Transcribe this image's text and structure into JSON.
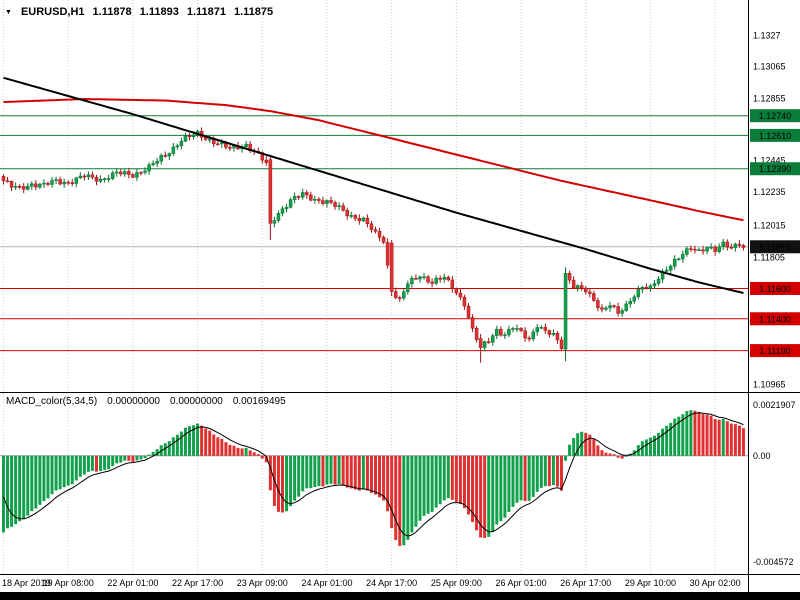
{
  "header": {
    "dropdown_icon": "▼",
    "symbol": "EURUSD,H1",
    "open": "1.11878",
    "high": "1.11893",
    "low": "1.11871",
    "close": "1.11875"
  },
  "macd_header": {
    "label": "MACD_color(5,34,5)",
    "value1": "0.00000000",
    "value2": "0.00000000",
    "value3": "0.00169495"
  },
  "chart_data": [
    {
      "type": "candlestick",
      "title": "EURUSD H1",
      "bars": 184,
      "y_axis": {
        "min": 1.1093,
        "max": 1.13345,
        "ticks": [
          "1.1327",
          "1.13065",
          "1.12855",
          "1.12445",
          "1.12235",
          "1.12015",
          "1.11805",
          "1.10965"
        ]
      },
      "x_ticks": [
        {
          "bar": 0,
          "label": "18 Apr 2019"
        },
        {
          "bar": 16,
          "label": "19 Apr 08:00"
        },
        {
          "bar": 32,
          "label": "22 Apr 01:00"
        },
        {
          "bar": 48,
          "label": "22 Apr 17:00"
        },
        {
          "bar": 64,
          "label": "23 Apr 09:00"
        },
        {
          "bar": 80,
          "label": "24 Apr 01:00"
        },
        {
          "bar": 96,
          "label": "24 Apr 17:00"
        },
        {
          "bar": 112,
          "label": "25 Apr 09:00"
        },
        {
          "bar": 128,
          "label": "26 Apr 01:00"
        },
        {
          "bar": 144,
          "label": "26 Apr 17:00"
        },
        {
          "bar": 160,
          "label": "29 Apr 10:00"
        },
        {
          "bar": 176,
          "label": "30 Apr 02:00"
        }
      ],
      "close_waypoints": [
        [
          0,
          1.1231
        ],
        [
          2,
          1.1227
        ],
        [
          4,
          1.1226
        ],
        [
          7,
          1.1229
        ],
        [
          10,
          1.1228
        ],
        [
          13,
          1.1231
        ],
        [
          16,
          1.123
        ],
        [
          20,
          1.1234
        ],
        [
          24,
          1.1232
        ],
        [
          28,
          1.1236
        ],
        [
          32,
          1.1235
        ],
        [
          36,
          1.124
        ],
        [
          40,
          1.1248
        ],
        [
          44,
          1.1258
        ],
        [
          48,
          1.1262
        ],
        [
          52,
          1.1257
        ],
        [
          56,
          1.1252
        ],
        [
          60,
          1.1255
        ],
        [
          63,
          1.1248
        ],
        [
          65,
          1.1242
        ],
        [
          66,
          1.1203
        ],
        [
          68,
          1.121
        ],
        [
          71,
          1.1218
        ],
        [
          74,
          1.1222
        ],
        [
          77,
          1.1219
        ],
        [
          80,
          1.1217
        ],
        [
          83,
          1.1213
        ],
        [
          86,
          1.1208
        ],
        [
          89,
          1.1205
        ],
        [
          92,
          1.1196
        ],
        [
          94,
          1.1192
        ],
        [
          96,
          1.1158
        ],
        [
          98,
          1.1152
        ],
        [
          100,
          1.1163
        ],
        [
          103,
          1.1169
        ],
        [
          106,
          1.1164
        ],
        [
          109,
          1.1167
        ],
        [
          112,
          1.1158
        ],
        [
          114,
          1.115
        ],
        [
          116,
          1.1132
        ],
        [
          118,
          1.1121
        ],
        [
          120,
          1.1126
        ],
        [
          122,
          1.1133
        ],
        [
          124,
          1.1129
        ],
        [
          126,
          1.1134
        ],
        [
          128,
          1.1131
        ],
        [
          130,
          1.1127
        ],
        [
          132,
          1.1136
        ],
        [
          134,
          1.1131
        ],
        [
          136,
          1.1129
        ],
        [
          138,
          1.1122
        ],
        [
          139,
          1.117
        ],
        [
          141,
          1.1162
        ],
        [
          144,
          1.1158
        ],
        [
          146,
          1.1152
        ],
        [
          148,
          1.1146
        ],
        [
          150,
          1.115
        ],
        [
          152,
          1.1143
        ],
        [
          154,
          1.1148
        ],
        [
          156,
          1.1156
        ],
        [
          158,
          1.1162
        ],
        [
          160,
          1.116
        ],
        [
          162,
          1.1166
        ],
        [
          164,
          1.1173
        ],
        [
          166,
          1.1179
        ],
        [
          168,
          1.1183
        ],
        [
          170,
          1.1186
        ],
        [
          172,
          1.1184
        ],
        [
          174,
          1.1188
        ],
        [
          176,
          1.1186
        ],
        [
          178,
          1.1189
        ],
        [
          180,
          1.1186
        ],
        [
          182,
          1.119
        ],
        [
          183,
          1.11875
        ]
      ],
      "candle_overrides": {
        "66": [
          1.1245,
          1.1247,
          1.1192,
          1.1203
        ],
        "96": [
          1.119,
          1.1192,
          1.1155,
          1.1158
        ],
        "118": [
          1.1127,
          1.113,
          1.1111,
          1.1121
        ],
        "139": [
          1.112,
          1.1174,
          1.1112,
          1.117
        ]
      },
      "levels": {
        "resistance": [
          {
            "price": 1.1274,
            "label": "1.12740"
          },
          {
            "price": 1.1261,
            "label": "1.12610"
          },
          {
            "price": 1.1239,
            "label": "1.12390"
          }
        ],
        "support": [
          {
            "price": 1.116,
            "label": "1.11600"
          },
          {
            "price": 1.114,
            "label": "1.11400"
          },
          {
            "price": 1.1119,
            "label": "1.11190"
          }
        ]
      },
      "current_price": {
        "value": 1.11875,
        "label": "1.11875"
      },
      "moving_averages": [
        {
          "name": "ma-red",
          "color": "#d40000",
          "points": [
            [
              0,
              1.1283
            ],
            [
              20,
              1.1285
            ],
            [
              40,
              1.1284
            ],
            [
              55,
              1.1281
            ],
            [
              66,
              1.1277
            ],
            [
              78,
              1.1271
            ],
            [
              90,
              1.1263
            ],
            [
              102,
              1.1255
            ],
            [
              114,
              1.1247
            ],
            [
              126,
              1.1239
            ],
            [
              138,
              1.1231
            ],
            [
              150,
              1.1224
            ],
            [
              162,
              1.1217
            ],
            [
              172,
              1.1211
            ],
            [
              183,
              1.1205
            ]
          ]
        },
        {
          "name": "ma-black",
          "color": "#000000",
          "points": [
            [
              0,
              1.1299
            ],
            [
              16,
              1.1287
            ],
            [
              32,
              1.1275
            ],
            [
              48,
              1.1262
            ],
            [
              64,
              1.1249
            ],
            [
              80,
              1.1236
            ],
            [
              96,
              1.1223
            ],
            [
              112,
              1.121
            ],
            [
              128,
              1.1198
            ],
            [
              144,
              1.1186
            ],
            [
              160,
              1.1173
            ],
            [
              172,
              1.1164
            ],
            [
              183,
              1.1157
            ]
          ]
        }
      ],
      "colors": {
        "up": "#12a14b",
        "up_dark": "#0a6e33",
        "down": "#e03131",
        "down_dark": "#9e1414",
        "resistance": "#0b7d3b",
        "support": "#d40000",
        "current_badge": "#111111",
        "current_line": "#b0b0b0",
        "grid": "#cccccc"
      }
    },
    {
      "type": "bar",
      "name": "MACD_color(5,34,5)",
      "params": {
        "fast_ema": 5,
        "slow_ema": 34,
        "signal": 5
      },
      "y_axis": {
        "min": -0.005,
        "max": 0.0024,
        "ticks": [
          "0.0021907",
          "0.00",
          "-0.004572"
        ]
      },
      "derived": {
        "source": "candlestick closes",
        "slow_ema_seed": 1.1266,
        "signal_seed": -0.001
      },
      "colors": {
        "rising": "#12a14b",
        "falling": "#e03131",
        "signal_line": "#000000",
        "zero_line": "#999999"
      }
    }
  ]
}
